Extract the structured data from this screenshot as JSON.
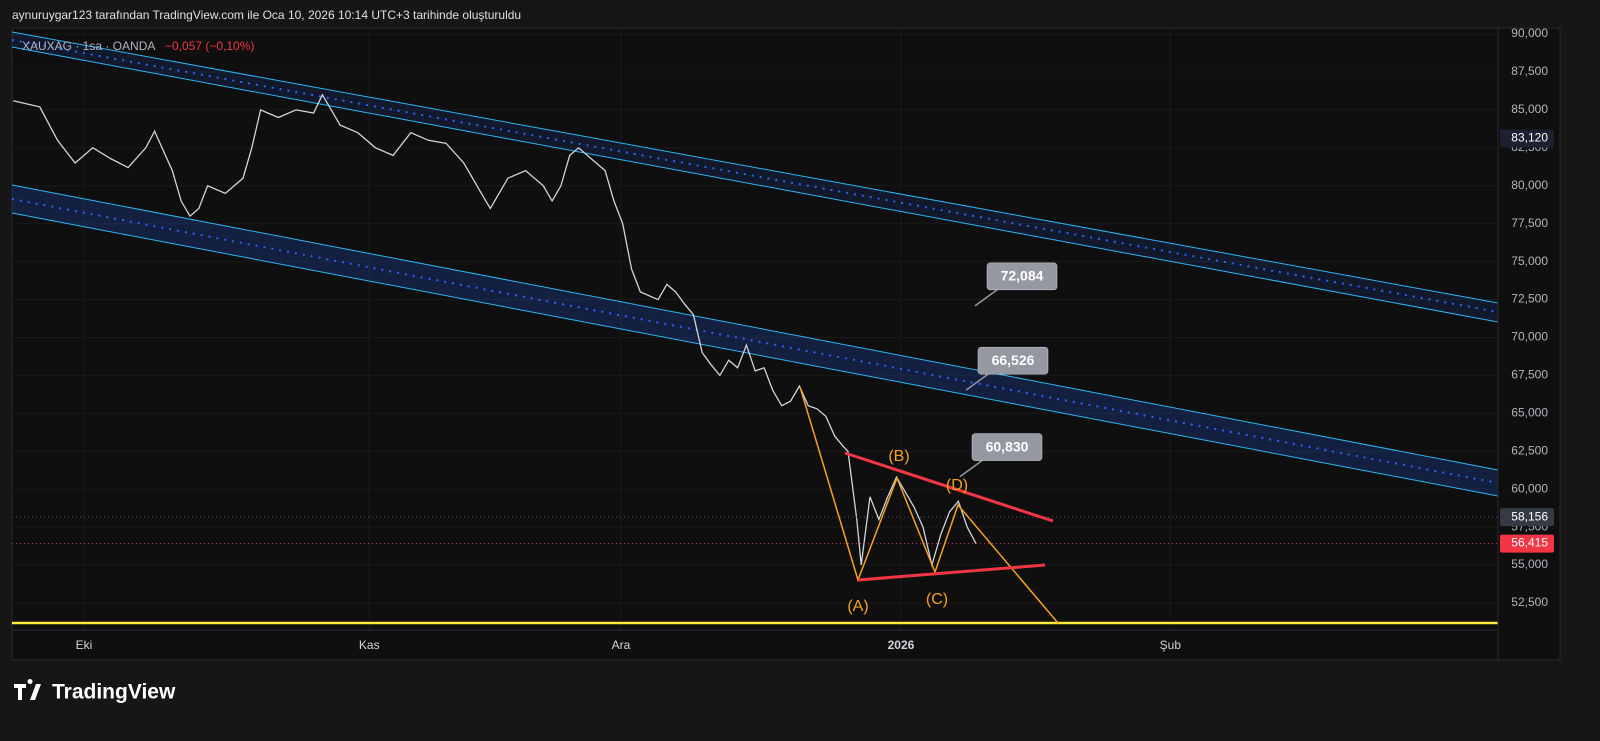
{
  "header": "aynuruygar123 tarafından TradingView.com ile Oca 10, 2026 10:14 UTC+3 tarihinde oluşturuldu",
  "logo": "TradingView",
  "chart_data": {
    "type": "line",
    "symbol": "XAUXAG · 1sa · OANDA",
    "change": "−0,057 (−0,10%)",
    "color": "#d1d4dc",
    "x": [
      -8,
      -5,
      -3,
      -1,
      1,
      3,
      5,
      7,
      8,
      10,
      11,
      12,
      13,
      14,
      16,
      18,
      19,
      20,
      22,
      24,
      26,
      27,
      29,
      31,
      33,
      35,
      37,
      39,
      41,
      43,
      45,
      46,
      48,
      50,
      52,
      53,
      54,
      55,
      56,
      58,
      59,
      60,
      61,
      62,
      63,
      65,
      66,
      67,
      68,
      69,
      70,
      71,
      72,
      73,
      74,
      75,
      76,
      77,
      78,
      79,
      80,
      81,
      82,
      83,
      84,
      85,
      86,
      86.5,
      87.5,
      88,
      89,
      90,
      91,
      92,
      93,
      94,
      95,
      96,
      97,
      98,
      99,
      100,
      101
    ],
    "values": [
      85600,
      85200,
      83000,
      81500,
      82500,
      81800,
      81200,
      82500,
      83600,
      81000,
      79000,
      78000,
      78500,
      80000,
      79500,
      80500,
      82500,
      85000,
      84500,
      85000,
      84800,
      86000,
      84000,
      83500,
      82500,
      82000,
      83500,
      83000,
      82800,
      81500,
      79500,
      78500,
      80500,
      81000,
      80000,
      79000,
      80000,
      82000,
      82500,
      81500,
      81000,
      79000,
      77500,
      74500,
      73000,
      72500,
      73500,
      73000,
      72200,
      71500,
      69000,
      68200,
      67500,
      68500,
      68000,
      69500,
      67800,
      68000,
      66500,
      65500,
      65800,
      66800,
      65500,
      65300,
      64800,
      63500,
      62800,
      62500,
      58000,
      55000,
      59500,
      58000,
      59500,
      60800,
      59800,
      58800,
      57500,
      55000,
      57000,
      58500,
      59200,
      57500,
      56415
    ],
    "xlim": [
      -8.15,
      160.1
    ],
    "xticks": [
      {
        "value": 0,
        "label": "Eki"
      },
      {
        "value": 32.3,
        "label": "Kas"
      },
      {
        "value": 60.8,
        "label": "Ara"
      },
      {
        "value": 92.5,
        "label": "2026"
      },
      {
        "value": 123,
        "label": "Şub"
      }
    ],
    "ylim": [
      48740,
      90400
    ],
    "yticks": [
      {
        "value": 52500,
        "label": "52,500"
      },
      {
        "value": 55000,
        "label": "55,000"
      },
      {
        "value": 57500,
        "label": "57,500"
      },
      {
        "value": 60000,
        "label": "60,000"
      },
      {
        "value": 62500,
        "label": "62,500"
      },
      {
        "value": 65000,
        "label": "65,000"
      },
      {
        "value": 67500,
        "label": "67,500"
      },
      {
        "value": 70000,
        "label": "70,000"
      },
      {
        "value": 72500,
        "label": "72,500"
      },
      {
        "value": 75000,
        "label": "75,000"
      },
      {
        "value": 77500,
        "label": "77,500"
      },
      {
        "value": 80000,
        "label": "80,000"
      },
      {
        "value": 82500,
        "label": "82,500"
      },
      {
        "value": 85000,
        "label": "85,000"
      },
      {
        "value": 87500,
        "label": "87,500"
      },
      {
        "value": 90000,
        "label": "90,000"
      }
    ],
    "grid": true,
    "price_tags": [
      {
        "value": 83120,
        "label": "83,120",
        "color": "#1c2030"
      },
      {
        "value": 58156,
        "label": "58,156",
        "color": "#363a45"
      },
      {
        "value": 56415,
        "label": "56,415",
        "color": "#f23645"
      }
    ],
    "callouts": [
      {
        "value": 72084,
        "label": "72,084"
      },
      {
        "value": 66526,
        "label": "66,526"
      },
      {
        "value": 60830,
        "label": "60,830"
      }
    ],
    "wave_labels": [
      "(A)",
      "(B)",
      "(C)",
      "(D)"
    ]
  }
}
